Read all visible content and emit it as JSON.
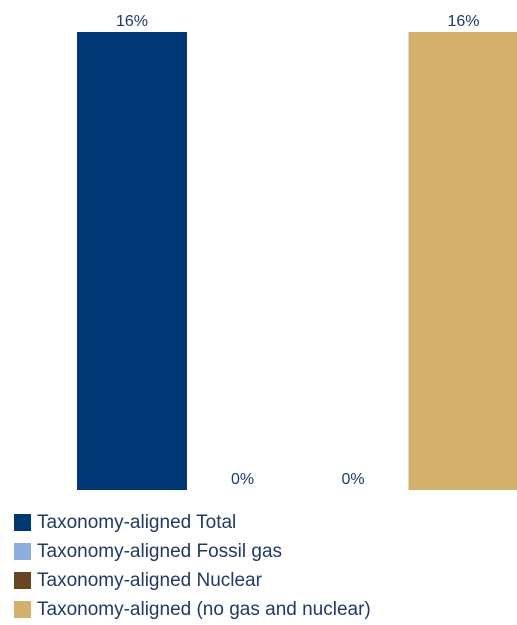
{
  "chart_data": {
    "type": "bar",
    "categories": [
      "Taxonomy-aligned Total",
      "Taxonomy-aligned Fossil gas",
      "Taxonomy-aligned Nuclear",
      "Taxonomy-aligned (no gas and nuclear)"
    ],
    "values": [
      16,
      0,
      0,
      16
    ],
    "data_labels": [
      "16%",
      "0%",
      "0%",
      "16%"
    ],
    "colors": [
      "#003876",
      "#8eaee0",
      "#6b4423",
      "#d3b06c"
    ],
    "ylim": [
      0,
      16
    ],
    "grid": false,
    "legend_position": "bottom-left",
    "title": "",
    "xlabel": "",
    "ylabel": ""
  },
  "legend": {
    "items": [
      {
        "label": "Taxonomy-aligned Total",
        "color": "#003876"
      },
      {
        "label": "Taxonomy-aligned Fossil gas",
        "color": "#8eaee0"
      },
      {
        "label": "Taxonomy-aligned Nuclear",
        "color": "#6b4423"
      },
      {
        "label": "Taxonomy-aligned (no gas and nuclear)",
        "color": "#d3b06c"
      }
    ]
  }
}
